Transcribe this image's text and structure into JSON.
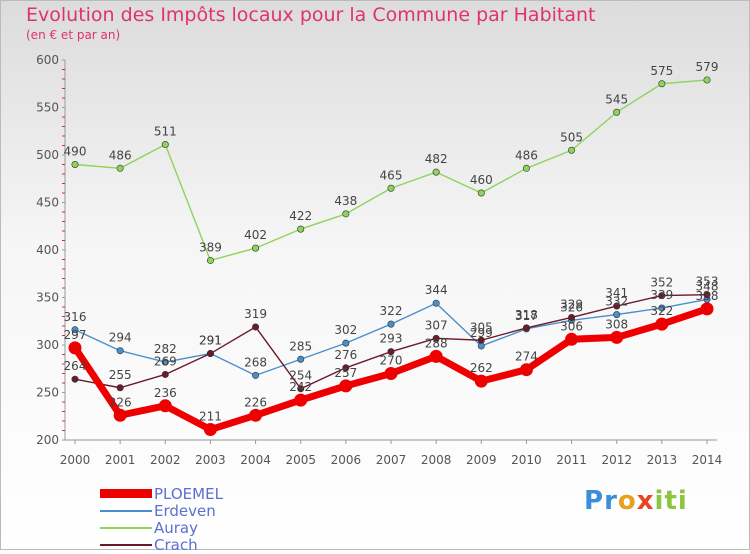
{
  "title": "Evolution des Impôts locaux pour la Commune par Habitant",
  "subtitle": "(en € et par an)",
  "logo": {
    "text": "Proxiti",
    "letters": [
      "P",
      "r",
      "o",
      "x",
      "i",
      "t",
      "i"
    ],
    "colors": [
      "#3a8fd6",
      "#3a8fd6",
      "#e8a020",
      "#e84420",
      "#8cc63f",
      "#8cc63f",
      "#8cc63f"
    ]
  },
  "chart_data": {
    "type": "line",
    "x": [
      "2000",
      "2001",
      "2002",
      "2003",
      "2004",
      "2005",
      "2006",
      "2007",
      "2008",
      "2009",
      "2010",
      "2011",
      "2012",
      "2013",
      "2014"
    ],
    "ylim": [
      200,
      600
    ],
    "yticks": [
      "200",
      "250",
      "300",
      "350",
      "400",
      "450",
      "500",
      "550",
      "600"
    ],
    "grid": false,
    "legend_position": "bottom-left",
    "series": [
      {
        "name": "PLOEMEL",
        "color": "#ee0000",
        "values": [
          297,
          226,
          236,
          211,
          226,
          242,
          257,
          270,
          288,
          262,
          274,
          306,
          308,
          322,
          338
        ],
        "labels": [
          "297",
          "226",
          "236",
          "211",
          "226",
          "242",
          "257",
          "270",
          "288",
          "262",
          "274",
          "306",
          "308",
          "322",
          "338"
        ]
      },
      {
        "name": "Erdeven",
        "color": "#4a8fcc",
        "values": [
          316,
          294,
          282,
          291,
          268,
          285,
          302,
          322,
          344,
          299,
          317,
          326,
          332,
          339,
          348
        ],
        "labels": [
          "316",
          "294",
          "282",
          "291",
          "268",
          "285",
          "302",
          "322",
          "344",
          "299",
          "317",
          "326",
          "332",
          "339",
          "348"
        ]
      },
      {
        "name": "Auray",
        "color": "#8ed45a",
        "values": [
          490,
          486,
          511,
          389,
          402,
          422,
          438,
          465,
          482,
          460,
          486,
          505,
          545,
          575,
          579
        ],
        "labels": [
          "490",
          "486",
          "511",
          "389",
          "402",
          "422",
          "438",
          "465",
          "482",
          "460",
          "486",
          "505",
          "545",
          "575",
          "579"
        ]
      },
      {
        "name": "Crach",
        "color": "#6b1b2a",
        "values": [
          264,
          255,
          269,
          291,
          319,
          254,
          276,
          293,
          307,
          305,
          318,
          329,
          341,
          352,
          353
        ],
        "labels": [
          "264",
          "255",
          "269",
          "291",
          "319",
          "254",
          "276",
          "293",
          "307",
          "305",
          "318",
          "329",
          "341",
          "352",
          "353"
        ]
      }
    ]
  }
}
